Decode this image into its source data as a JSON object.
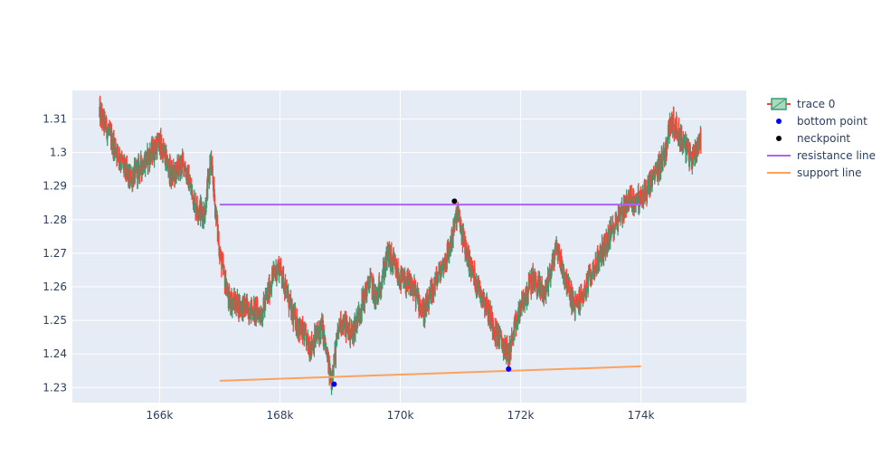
{
  "chart_data": {
    "type": "candlestick",
    "title": "",
    "xlabel": "",
    "ylabel": "",
    "xlim": [
      164550,
      175750
    ],
    "ylim": [
      1.2255,
      1.3185
    ],
    "x_ticks": [
      {
        "value": 166000,
        "label": "166k"
      },
      {
        "value": 168000,
        "label": "168k"
      },
      {
        "value": 170000,
        "label": "170k"
      },
      {
        "value": 172000,
        "label": "172k"
      },
      {
        "value": 174000,
        "label": "174k"
      }
    ],
    "y_ticks": [
      {
        "value": 1.23,
        "label": "1.23"
      },
      {
        "value": 1.24,
        "label": "1.24"
      },
      {
        "value": 1.25,
        "label": "1.25"
      },
      {
        "value": 1.26,
        "label": "1.26"
      },
      {
        "value": 1.27,
        "label": "1.27"
      },
      {
        "value": 1.28,
        "label": "1.28"
      },
      {
        "value": 1.29,
        "label": "1.29"
      },
      {
        "value": 1.3,
        "label": "1.3"
      },
      {
        "value": 1.31,
        "label": "1.31"
      }
    ],
    "grid": true,
    "legend_position": "top-right",
    "series": [
      {
        "name": "trace 0",
        "kind": "candlestick",
        "increasing_color": "#3d9970",
        "decreasing_color": "#ff4136",
        "x_range": [
          165000,
          175000
        ],
        "path_anchors": [
          [
            165000,
            1.312
          ],
          [
            165200,
            1.304
          ],
          [
            165500,
            1.292
          ],
          [
            165700,
            1.296
          ],
          [
            166000,
            1.303
          ],
          [
            166200,
            1.293
          ],
          [
            166400,
            1.297
          ],
          [
            166600,
            1.284
          ],
          [
            166750,
            1.282
          ],
          [
            166850,
            1.298
          ],
          [
            167000,
            1.27
          ],
          [
            167150,
            1.256
          ],
          [
            167400,
            1.254
          ],
          [
            167700,
            1.252
          ],
          [
            167900,
            1.264
          ],
          [
            168000,
            1.266
          ],
          [
            168200,
            1.252
          ],
          [
            168500,
            1.242
          ],
          [
            168700,
            1.248
          ],
          [
            168850,
            1.232
          ],
          [
            169000,
            1.25
          ],
          [
            169200,
            1.246
          ],
          [
            169500,
            1.262
          ],
          [
            169600,
            1.256
          ],
          [
            169800,
            1.27
          ],
          [
            170000,
            1.262
          ],
          [
            170200,
            1.26
          ],
          [
            170400,
            1.252
          ],
          [
            170600,
            1.262
          ],
          [
            170800,
            1.27
          ],
          [
            170950,
            1.282
          ],
          [
            171100,
            1.27
          ],
          [
            171250,
            1.262
          ],
          [
            171400,
            1.256
          ],
          [
            171600,
            1.246
          ],
          [
            171800,
            1.24
          ],
          [
            172000,
            1.254
          ],
          [
            172200,
            1.262
          ],
          [
            172400,
            1.258
          ],
          [
            172600,
            1.272
          ],
          [
            172750,
            1.262
          ],
          [
            172900,
            1.254
          ],
          [
            173050,
            1.258
          ],
          [
            173200,
            1.265
          ],
          [
            173400,
            1.272
          ],
          [
            173600,
            1.28
          ],
          [
            173800,
            1.286
          ],
          [
            174000,
            1.286
          ],
          [
            174200,
            1.292
          ],
          [
            174400,
            1.3
          ],
          [
            174500,
            1.31
          ],
          [
            174700,
            1.303
          ],
          [
            174850,
            1.298
          ],
          [
            175000,
            1.305
          ]
        ]
      },
      {
        "name": "bottom point",
        "kind": "markers",
        "color": "#0000ff",
        "points": [
          [
            168900,
            1.231
          ],
          [
            171800,
            1.2355
          ]
        ]
      },
      {
        "name": "neckpoint",
        "kind": "markers",
        "color": "#000000",
        "points": [
          [
            170900,
            1.2855
          ]
        ]
      },
      {
        "name": "resistance line",
        "kind": "line",
        "color": "#ab63fa",
        "points": [
          [
            167000,
            1.2845
          ],
          [
            174000,
            1.2845
          ]
        ]
      },
      {
        "name": "support line",
        "kind": "line",
        "color": "#ffa15a",
        "points": [
          [
            167000,
            1.232
          ],
          [
            174000,
            1.2363
          ]
        ]
      }
    ]
  }
}
